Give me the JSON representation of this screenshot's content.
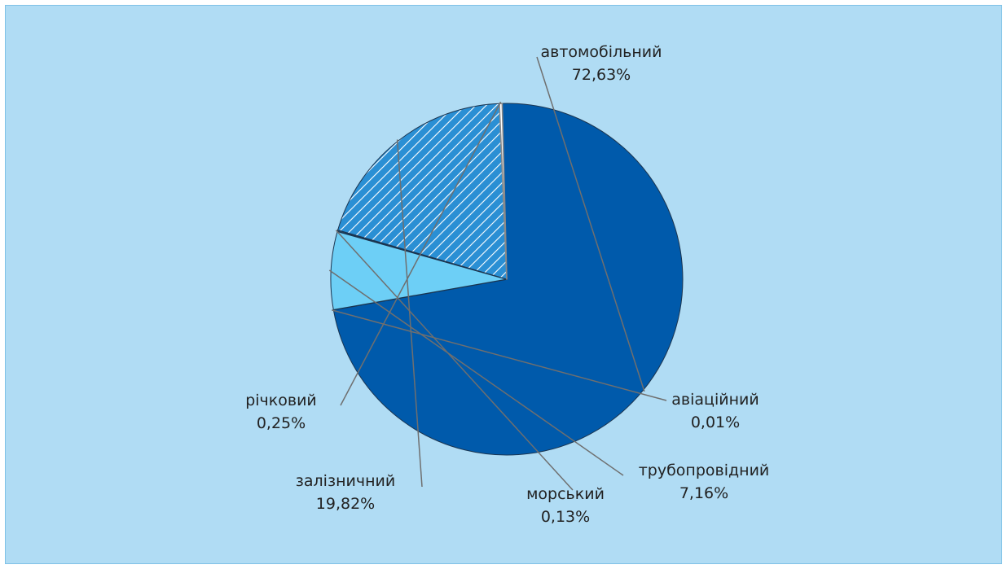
{
  "chart_data": {
    "type": "pie",
    "title": "",
    "slices": [
      {
        "label": "автомобільний",
        "value": 72.63,
        "text": "72,63%",
        "color": "#005aab",
        "pattern": "solid"
      },
      {
        "label": "авіаційний",
        "value": 0.01,
        "text": "0,01%",
        "color": "#005aab",
        "pattern": "solid"
      },
      {
        "label": "трубопровідний",
        "value": 7.16,
        "text": "7,16%",
        "color": "#6dcff6",
        "pattern": "solid"
      },
      {
        "label": "морський",
        "value": 0.13,
        "text": "0,13%",
        "color": "#5fc4f0",
        "pattern": "solid"
      },
      {
        "label": "залізничний",
        "value": 19.82,
        "text": "19,82%",
        "color": "#2a8fd4",
        "pattern": "hatched"
      },
      {
        "label": "річковий",
        "value": 0.25,
        "text": "0,25%",
        "color": "#ffffff",
        "pattern": "solid"
      }
    ],
    "legend": "none",
    "label_placement": "outside-with-leader-lines"
  }
}
